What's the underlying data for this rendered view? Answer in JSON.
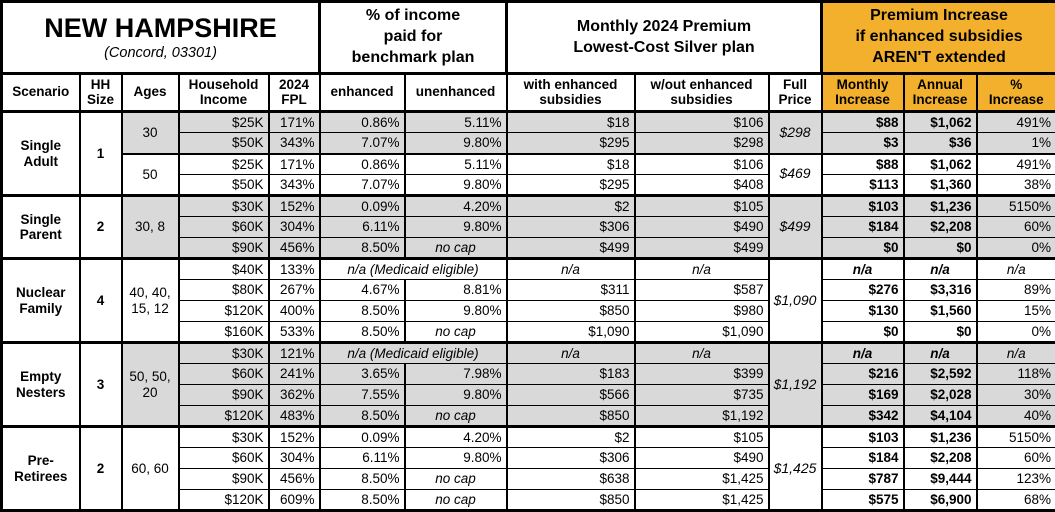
{
  "colors": {
    "accent_orange": "#F2B02D",
    "row_shade": "#D9D9D9",
    "border": "#000000"
  },
  "chart_data": {
    "type": "table",
    "title": "NEW HAMPSHIRE",
    "subtitle": "(Concord, 03301)",
    "header_groups": {
      "income_pct": "% of income\npaid for\nbenchmark plan",
      "premium": "Monthly 2024 Premium\nLowest-Cost Silver plan",
      "increase": "Premium Increase\nif enhanced subsidies\nAREN'T extended"
    },
    "columns": [
      "Scenario",
      "HH\nSize",
      "Ages",
      "Household\nIncome",
      "2024\nFPL",
      "enhanced",
      "unenhanced",
      "with enhanced\nsubsidies",
      "w/out enhanced\nsubsidies",
      "Full\nPrice",
      "Monthly\nIncrease",
      "Annual\nIncrease",
      "%\nIncrease"
    ],
    "scenarios": [
      {
        "name": "Single Adult",
        "hh_size": "1",
        "groups": [
          {
            "ages": "30",
            "shaded": true,
            "full_price": "$298",
            "rows": [
              {
                "income": "$25K",
                "fpl": "171%",
                "enhanced": "0.86%",
                "unenhanced": "5.11%",
                "with_sub": "$18",
                "wout_sub": "$106",
                "monthly": "$88",
                "annual": "$1,062",
                "pct": "491%"
              },
              {
                "income": "$50K",
                "fpl": "343%",
                "enhanced": "7.07%",
                "unenhanced": "9.80%",
                "with_sub": "$295",
                "wout_sub": "$298",
                "monthly": "$3",
                "annual": "$36",
                "pct": "1%"
              }
            ]
          },
          {
            "ages": "50",
            "shaded": false,
            "full_price": "$469",
            "rows": [
              {
                "income": "$25K",
                "fpl": "171%",
                "enhanced": "0.86%",
                "unenhanced": "5.11%",
                "with_sub": "$18",
                "wout_sub": "$106",
                "monthly": "$88",
                "annual": "$1,062",
                "pct": "491%"
              },
              {
                "income": "$50K",
                "fpl": "343%",
                "enhanced": "7.07%",
                "unenhanced": "9.80%",
                "with_sub": "$295",
                "wout_sub": "$408",
                "monthly": "$113",
                "annual": "$1,360",
                "pct": "38%"
              }
            ]
          }
        ]
      },
      {
        "name": "Single Parent",
        "hh_size": "2",
        "groups": [
          {
            "ages": "30, 8",
            "shaded": true,
            "full_price": "$499",
            "rows": [
              {
                "income": "$30K",
                "fpl": "152%",
                "enhanced": "0.09%",
                "unenhanced": "4.20%",
                "with_sub": "$2",
                "wout_sub": "$105",
                "monthly": "$103",
                "annual": "$1,236",
                "pct": "5150%"
              },
              {
                "income": "$60K",
                "fpl": "304%",
                "enhanced": "6.11%",
                "unenhanced": "9.80%",
                "with_sub": "$306",
                "wout_sub": "$490",
                "monthly": "$184",
                "annual": "$2,208",
                "pct": "60%"
              },
              {
                "income": "$90K",
                "fpl": "456%",
                "enhanced": "8.50%",
                "unenhanced": "no cap",
                "with_sub": "$499",
                "wout_sub": "$499",
                "monthly": "$0",
                "annual": "$0",
                "pct": "0%"
              }
            ]
          }
        ]
      },
      {
        "name": "Nuclear Family",
        "hh_size": "4",
        "groups": [
          {
            "ages": "40, 40, 15, 12",
            "shaded": false,
            "full_price": "$1,090",
            "rows": [
              {
                "income": "$40K",
                "fpl": "133%",
                "medicaid": true,
                "medicaid_label": "n/a (Medicaid eligible)",
                "with_sub": "n/a",
                "wout_sub": "n/a",
                "monthly": "n/a",
                "annual": "n/a",
                "pct": "n/a"
              },
              {
                "income": "$80K",
                "fpl": "267%",
                "enhanced": "4.67%",
                "unenhanced": "8.81%",
                "with_sub": "$311",
                "wout_sub": "$587",
                "monthly": "$276",
                "annual": "$3,316",
                "pct": "89%"
              },
              {
                "income": "$120K",
                "fpl": "400%",
                "enhanced": "8.50%",
                "unenhanced": "9.80%",
                "with_sub": "$850",
                "wout_sub": "$980",
                "monthly": "$130",
                "annual": "$1,560",
                "pct": "15%"
              },
              {
                "income": "$160K",
                "fpl": "533%",
                "enhanced": "8.50%",
                "unenhanced": "no cap",
                "with_sub": "$1,090",
                "wout_sub": "$1,090",
                "monthly": "$0",
                "annual": "$0",
                "pct": "0%"
              }
            ]
          }
        ]
      },
      {
        "name": "Empty Nesters",
        "hh_size": "3",
        "groups": [
          {
            "ages": "50, 50, 20",
            "shaded": true,
            "full_price": "$1,192",
            "rows": [
              {
                "income": "$30K",
                "fpl": "121%",
                "medicaid": true,
                "medicaid_label": "n/a (Medicaid eligible)",
                "with_sub": "n/a",
                "wout_sub": "n/a",
                "monthly": "n/a",
                "annual": "n/a",
                "pct": "n/a"
              },
              {
                "income": "$60K",
                "fpl": "241%",
                "enhanced": "3.65%",
                "unenhanced": "7.98%",
                "with_sub": "$183",
                "wout_sub": "$399",
                "monthly": "$216",
                "annual": "$2,592",
                "pct": "118%"
              },
              {
                "income": "$90K",
                "fpl": "362%",
                "enhanced": "7.55%",
                "unenhanced": "9.80%",
                "with_sub": "$566",
                "wout_sub": "$735",
                "monthly": "$169",
                "annual": "$2,028",
                "pct": "30%"
              },
              {
                "income": "$120K",
                "fpl": "483%",
                "enhanced": "8.50%",
                "unenhanced": "no cap",
                "with_sub": "$850",
                "wout_sub": "$1,192",
                "monthly": "$342",
                "annual": "$4,104",
                "pct": "40%"
              }
            ]
          }
        ]
      },
      {
        "name": "Pre-Retirees",
        "hh_size": "2",
        "groups": [
          {
            "ages": "60, 60",
            "shaded": false,
            "full_price": "$1,425",
            "rows": [
              {
                "income": "$30K",
                "fpl": "152%",
                "enhanced": "0.09%",
                "unenhanced": "4.20%",
                "with_sub": "$2",
                "wout_sub": "$105",
                "monthly": "$103",
                "annual": "$1,236",
                "pct": "5150%"
              },
              {
                "income": "$60K",
                "fpl": "304%",
                "enhanced": "6.11%",
                "unenhanced": "9.80%",
                "with_sub": "$306",
                "wout_sub": "$490",
                "monthly": "$184",
                "annual": "$2,208",
                "pct": "60%"
              },
              {
                "income": "$90K",
                "fpl": "456%",
                "enhanced": "8.50%",
                "unenhanced": "no cap",
                "with_sub": "$638",
                "wout_sub": "$1,425",
                "monthly": "$787",
                "annual": "$9,444",
                "pct": "123%"
              },
              {
                "income": "$120K",
                "fpl": "609%",
                "enhanced": "8.50%",
                "unenhanced": "no cap",
                "with_sub": "$850",
                "wout_sub": "$1,425",
                "monthly": "$575",
                "annual": "$6,900",
                "pct": "68%"
              }
            ]
          }
        ]
      }
    ]
  }
}
